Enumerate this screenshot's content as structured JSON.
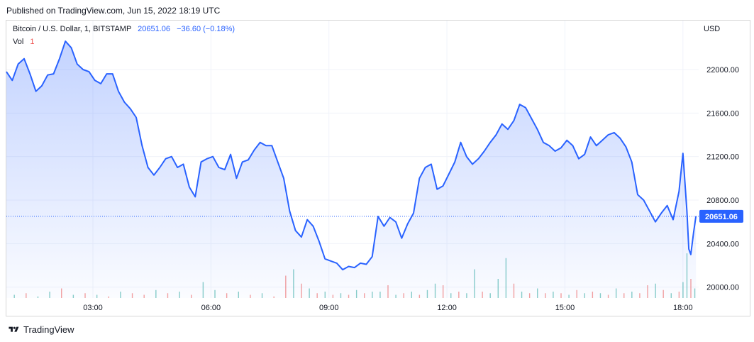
{
  "header": {
    "published": "Published on TradingView.com, Jun 15, 2022 18:19 UTC"
  },
  "legend": {
    "symbol": "Bitcoin / U.S. Dollar, 1, BITSTAMP",
    "last": "20651.06",
    "change": "−36.60 (−0.18%)",
    "vol_label": "Vol",
    "vol_value": "1"
  },
  "axis": {
    "currency": "USD"
  },
  "footer": {
    "brand": "TradingView"
  },
  "colors": {
    "line": "#2962ff",
    "fill": "#2962ff",
    "up": "#26a69a",
    "down": "#ef5350",
    "grid": "#f0f3fa"
  },
  "chart_data": {
    "type": "area",
    "title": "Bitcoin / U.S. Dollar, 1, BITSTAMP",
    "ylabel": "USD",
    "ylim": [
      19900,
      22450
    ],
    "xlim_hours": [
      0.8,
      18.4
    ],
    "x_ticks": [
      {
        "label": "03:00",
        "h": 3
      },
      {
        "label": "06:00",
        "h": 6
      },
      {
        "label": "09:00",
        "h": 9
      },
      {
        "label": "12:00",
        "h": 12
      },
      {
        "label": "15:00",
        "h": 15
      },
      {
        "label": "18:00",
        "h": 18
      }
    ],
    "y_ticks": [
      20000,
      20400,
      20800,
      21200,
      21600,
      22000
    ],
    "last_price": 20651.06,
    "last_price_label": "20651.06",
    "series": [
      {
        "x_hours": [
          0.8,
          0.95,
          1.1,
          1.25,
          1.4,
          1.55,
          1.7,
          1.85,
          2.0,
          2.15,
          2.3,
          2.45,
          2.6,
          2.75,
          2.9,
          3.05,
          3.2,
          3.35,
          3.5,
          3.65,
          3.8,
          3.95,
          4.1,
          4.25,
          4.4,
          4.55,
          4.7,
          4.85,
          5.0,
          5.15,
          5.3,
          5.45,
          5.6,
          5.75,
          5.9,
          6.05,
          6.2,
          6.35,
          6.5,
          6.65,
          6.8,
          6.95,
          7.1,
          7.25,
          7.4,
          7.55,
          7.7,
          7.85,
          8.0,
          8.15,
          8.3,
          8.45,
          8.6,
          8.75,
          8.9,
          9.05,
          9.2,
          9.35,
          9.5,
          9.65,
          9.8,
          9.95,
          10.1,
          10.25,
          10.4,
          10.55,
          10.7,
          10.85,
          11.0,
          11.15,
          11.3,
          11.45,
          11.6,
          11.75,
          11.9,
          12.05,
          12.2,
          12.35,
          12.5,
          12.65,
          12.8,
          12.95,
          13.1,
          13.25,
          13.4,
          13.55,
          13.7,
          13.85,
          14.0,
          14.15,
          14.3,
          14.45,
          14.6,
          14.75,
          14.9,
          15.05,
          15.2,
          15.35,
          15.5,
          15.65,
          15.8,
          15.95,
          16.1,
          16.25,
          16.4,
          16.55,
          16.7,
          16.85,
          17.0,
          17.15,
          17.3,
          17.45,
          17.6,
          17.75,
          17.9,
          18.0,
          18.1,
          18.15,
          18.2,
          18.27,
          18.33
        ],
        "values": [
          21980,
          21900,
          22050,
          22100,
          21960,
          21800,
          21850,
          21950,
          21960,
          22100,
          22260,
          22200,
          22050,
          22000,
          21980,
          21900,
          21870,
          21960,
          21960,
          21800,
          21700,
          21640,
          21560,
          21300,
          21100,
          21030,
          21100,
          21180,
          21200,
          21100,
          21130,
          20920,
          20830,
          21150,
          21180,
          21200,
          21100,
          21080,
          21220,
          21000,
          21150,
          21170,
          21260,
          21330,
          21300,
          21300,
          21150,
          21000,
          20700,
          20520,
          20460,
          20620,
          20560,
          20420,
          20260,
          20240,
          20220,
          20160,
          20190,
          20180,
          20220,
          20210,
          20280,
          20650,
          20560,
          20640,
          20600,
          20450,
          20580,
          20680,
          21000,
          21100,
          21130,
          20900,
          20930,
          21040,
          21150,
          21330,
          21200,
          21130,
          21180,
          21250,
          21330,
          21400,
          21500,
          21450,
          21530,
          21680,
          21650,
          21550,
          21450,
          21330,
          21300,
          21250,
          21280,
          21350,
          21300,
          21180,
          21220,
          21380,
          21300,
          21350,
          21400,
          21420,
          21370,
          21290,
          21150,
          20850,
          20800,
          20700,
          20600,
          20680,
          20750,
          20620,
          20880,
          21230,
          20700,
          20350,
          20300,
          20500,
          20651.06
        ]
      }
    ],
    "volume": {
      "ylim": [
        0,
        40
      ],
      "x_hours": [
        1.0,
        1.3,
        1.6,
        1.9,
        2.2,
        2.5,
        2.8,
        3.1,
        3.4,
        3.7,
        4.0,
        4.3,
        4.6,
        4.9,
        5.2,
        5.5,
        5.8,
        6.1,
        6.4,
        6.7,
        7.0,
        7.3,
        7.6,
        7.9,
        8.1,
        8.3,
        8.5,
        8.7,
        8.9,
        9.1,
        9.3,
        9.5,
        9.7,
        9.9,
        10.1,
        10.3,
        10.5,
        10.7,
        10.9,
        11.1,
        11.3,
        11.5,
        11.7,
        11.9,
        12.1,
        12.3,
        12.5,
        12.7,
        12.9,
        13.1,
        13.3,
        13.5,
        13.7,
        13.9,
        14.1,
        14.3,
        14.5,
        14.7,
        14.9,
        15.1,
        15.3,
        15.5,
        15.7,
        15.9,
        16.1,
        16.3,
        16.5,
        16.7,
        16.9,
        17.1,
        17.3,
        17.5,
        17.7,
        17.9,
        18.0,
        18.1,
        18.2,
        18.3
      ],
      "values": [
        2,
        3,
        1,
        4,
        6,
        2,
        3,
        2,
        1,
        4,
        3,
        2,
        5,
        3,
        4,
        2,
        10,
        5,
        3,
        4,
        2,
        3,
        1,
        14,
        18,
        9,
        6,
        3,
        4,
        2,
        3,
        2,
        5,
        3,
        4,
        4,
        8,
        2,
        3,
        4,
        2,
        5,
        9,
        8,
        3,
        4,
        3,
        18,
        4,
        3,
        12,
        25,
        9,
        4,
        3,
        6,
        3,
        4,
        3,
        2,
        5,
        3,
        4,
        3,
        2,
        6,
        3,
        4,
        3,
        8,
        9,
        5,
        3,
        4,
        10,
        28,
        12,
        6
      ],
      "up": [
        true,
        false,
        true,
        true,
        false,
        true,
        false,
        true,
        false,
        true,
        false,
        false,
        true,
        false,
        true,
        false,
        true,
        true,
        false,
        true,
        false,
        true,
        false,
        false,
        true,
        false,
        true,
        false,
        true,
        false,
        true,
        false,
        true,
        false,
        true,
        true,
        false,
        true,
        false,
        true,
        false,
        true,
        true,
        false,
        true,
        false,
        true,
        true,
        false,
        true,
        true,
        true,
        false,
        true,
        false,
        true,
        false,
        true,
        false,
        true,
        false,
        true,
        false,
        true,
        false,
        true,
        false,
        true,
        false,
        false,
        true,
        false,
        true,
        false,
        true,
        true,
        false,
        true
      ]
    }
  }
}
